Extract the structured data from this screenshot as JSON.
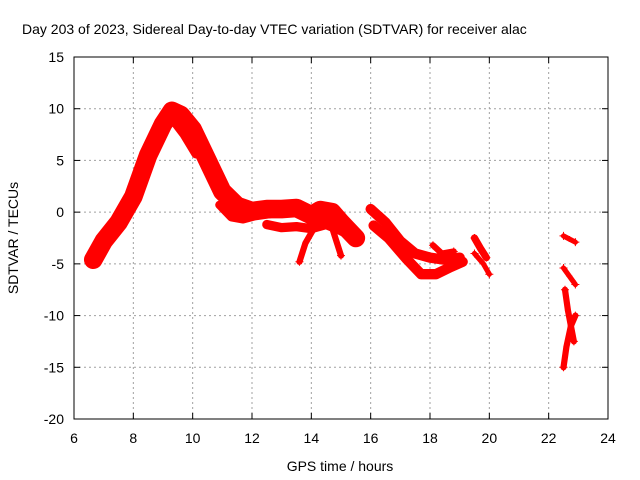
{
  "chart_data": {
    "type": "scatter",
    "title": "Day 203 of 2023, Sidereal Day-to-day VTEC variation (SDTVAR) for receiver alac",
    "xlabel": "GPS time / hours",
    "ylabel": "SDTVAR / TECUs",
    "xlim": [
      6,
      24
    ],
    "ylim": [
      -20,
      15
    ],
    "xticks": [
      6,
      8,
      10,
      12,
      14,
      16,
      18,
      20,
      22,
      24
    ],
    "yticks": [
      15,
      10,
      5,
      0,
      -5,
      -10,
      -15,
      -20
    ],
    "grid": true,
    "marker": "+",
    "color": "#ff0000",
    "series": [
      {
        "name": "main",
        "spread": 1.8,
        "points": [
          [
            6.65,
            -4.6
          ],
          [
            7.0,
            -2.8
          ],
          [
            7.5,
            -1.0
          ],
          [
            8.0,
            1.5
          ],
          [
            8.5,
            5.5
          ],
          [
            9.0,
            8.5
          ],
          [
            9.3,
            9.8
          ],
          [
            9.6,
            9.4
          ],
          [
            10.0,
            8.0
          ],
          [
            10.5,
            5.0
          ],
          [
            11.0,
            2.0
          ],
          [
            11.5,
            0.6
          ],
          [
            12.0,
            0.1
          ],
          [
            12.5,
            0.3
          ],
          [
            13.0,
            0.3
          ],
          [
            13.5,
            0.4
          ],
          [
            14.0,
            -0.3
          ],
          [
            14.3,
            0.2
          ],
          [
            14.7,
            0.0
          ],
          [
            15.0,
            -1.0
          ],
          [
            15.5,
            -2.5
          ]
        ]
      },
      {
        "name": "branch-9",
        "spread": 0.8,
        "points": [
          [
            9.3,
            9.0
          ],
          [
            9.7,
            7.5
          ],
          [
            10.1,
            5.6
          ]
        ]
      },
      {
        "name": "branch-11",
        "spread": 0.8,
        "points": [
          [
            10.9,
            0.7
          ],
          [
            11.3,
            -0.5
          ],
          [
            11.7,
            -0.7
          ],
          [
            12.1,
            -0.4
          ],
          [
            12.6,
            -0.2
          ]
        ]
      },
      {
        "name": "lower-13",
        "spread": 0.9,
        "points": [
          [
            12.5,
            -1.2
          ],
          [
            13.0,
            -1.5
          ],
          [
            13.5,
            -1.4
          ],
          [
            14.0,
            -1.6
          ],
          [
            14.5,
            -1.2
          ],
          [
            15.0,
            -1.8
          ],
          [
            15.5,
            -2.5
          ]
        ]
      },
      {
        "name": "arc-13",
        "spread": 0.6,
        "points": [
          [
            13.6,
            -4.8
          ],
          [
            13.8,
            -3.0
          ],
          [
            14.1,
            -1.5
          ],
          [
            14.4,
            -0.5
          ],
          [
            14.7,
            -1.5
          ],
          [
            15.0,
            -4.2
          ]
        ]
      },
      {
        "name": "upper-16",
        "spread": 1.0,
        "points": [
          [
            16.0,
            0.3
          ],
          [
            16.5,
            -1.0
          ],
          [
            17.0,
            -2.8
          ],
          [
            17.5,
            -4.0
          ],
          [
            18.0,
            -4.4
          ],
          [
            18.5,
            -4.6
          ],
          [
            19.0,
            -4.4
          ]
        ]
      },
      {
        "name": "lower-16",
        "spread": 1.0,
        "points": [
          [
            16.1,
            -1.3
          ],
          [
            16.6,
            -2.5
          ],
          [
            17.2,
            -4.5
          ],
          [
            17.7,
            -6.0
          ],
          [
            18.2,
            -6.0
          ],
          [
            18.7,
            -5.3
          ],
          [
            19.1,
            -4.8
          ]
        ]
      },
      {
        "name": "spike-18",
        "spread": 0.6,
        "points": [
          [
            18.1,
            -3.2
          ],
          [
            18.4,
            -4.0
          ],
          [
            18.8,
            -3.8
          ]
        ]
      },
      {
        "name": "cluster-19a",
        "spread": 0.7,
        "points": [
          [
            19.5,
            -2.5
          ],
          [
            19.7,
            -3.5
          ],
          [
            19.9,
            -4.4
          ]
        ]
      },
      {
        "name": "cluster-19b",
        "spread": 0.5,
        "points": [
          [
            19.5,
            -4.0
          ],
          [
            19.8,
            -5.0
          ],
          [
            20.0,
            -6.0
          ]
        ]
      },
      {
        "name": "late-a",
        "spread": 0.5,
        "points": [
          [
            22.5,
            -2.3
          ],
          [
            22.7,
            -2.6
          ],
          [
            22.9,
            -2.9
          ]
        ]
      },
      {
        "name": "late-b",
        "spread": 0.5,
        "points": [
          [
            22.5,
            -5.4
          ],
          [
            22.7,
            -6.2
          ],
          [
            22.9,
            -7.0
          ]
        ]
      },
      {
        "name": "late-c",
        "spread": 0.6,
        "points": [
          [
            22.55,
            -7.5
          ],
          [
            22.65,
            -9.5
          ],
          [
            22.75,
            -11.0
          ],
          [
            22.85,
            -12.5
          ]
        ]
      },
      {
        "name": "late-d",
        "spread": 0.6,
        "points": [
          [
            22.5,
            -15.0
          ],
          [
            22.6,
            -13.0
          ],
          [
            22.75,
            -11.0
          ],
          [
            22.9,
            -10.0
          ]
        ]
      }
    ]
  }
}
